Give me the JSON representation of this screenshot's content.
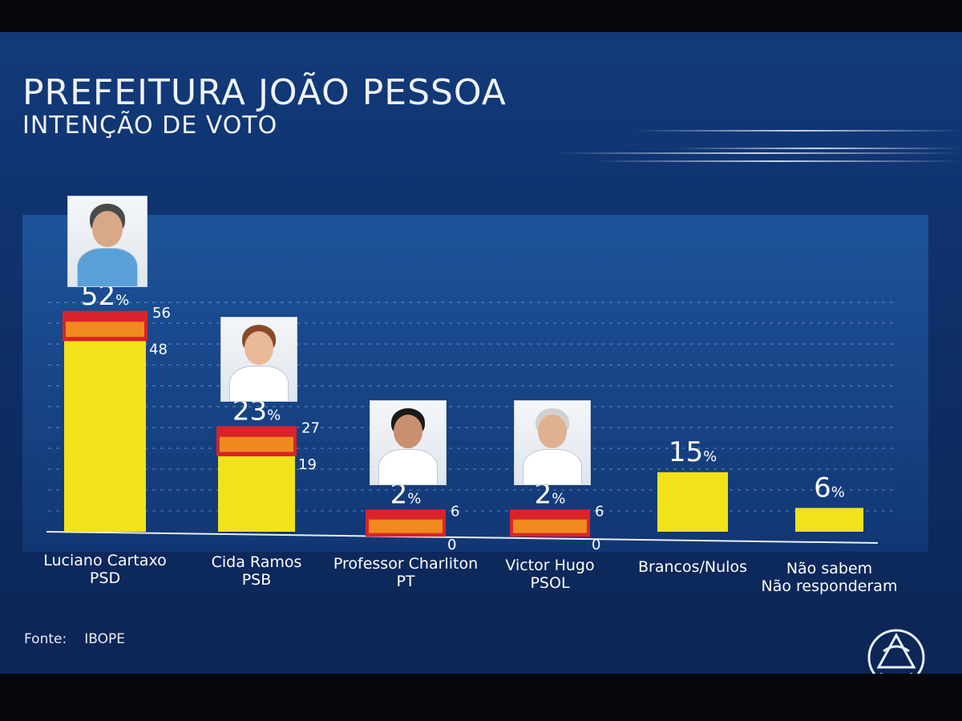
{
  "header": {
    "title": "PREFEITURA JOÃO PESSOA",
    "subtitle": "INTENÇÃO DE VOTO"
  },
  "source": {
    "label": "Fonte:",
    "value": "IBOPE"
  },
  "colors": {
    "bar": "#f2e21a",
    "margin_outer": "#d9232b",
    "margin_inner": "#f08a1e",
    "text": "#ffffff"
  },
  "chart_data": {
    "type": "bar",
    "title": "PREFEITURA JOÃO PESSOA",
    "subtitle": "INTENÇÃO DE VOTO",
    "categories": [
      "Luciano Cartaxo\nPSD",
      "Cida Ramos\nPSB",
      "Professor Charliton\nPT",
      "Victor Hugo\nPSOL",
      "Brancos/Nulos",
      "Não sabem\nNão responderam"
    ],
    "series": [
      {
        "values": [
          52,
          23,
          2,
          2,
          15,
          6
        ],
        "labels": [
          "52%",
          "23%",
          "2%",
          "2%",
          "15%",
          "6%"
        ],
        "error_upper": [
          56,
          27,
          6,
          6,
          null,
          null
        ],
        "error_lower": [
          48,
          19,
          0,
          0,
          null,
          null
        ]
      }
    ],
    "candidates": [
      {
        "name": "Luciano Cartaxo",
        "party": "PSD",
        "photo": "candidate-photo"
      },
      {
        "name": "Cida Ramos",
        "party": "PSB",
        "photo": "candidate-photo"
      },
      {
        "name": "Professor Charliton",
        "party": "PT",
        "photo": "candidate-photo"
      },
      {
        "name": "Victor Hugo",
        "party": "PSOL",
        "photo": "candidate-photo"
      },
      {
        "name": "Brancos/Nulos",
        "party": "",
        "photo": null
      },
      {
        "name": "Não sabem",
        "party": "Não responderam",
        "photo": null
      }
    ],
    "ylim": [
      0,
      60
    ],
    "grid": true,
    "legend": "none"
  }
}
